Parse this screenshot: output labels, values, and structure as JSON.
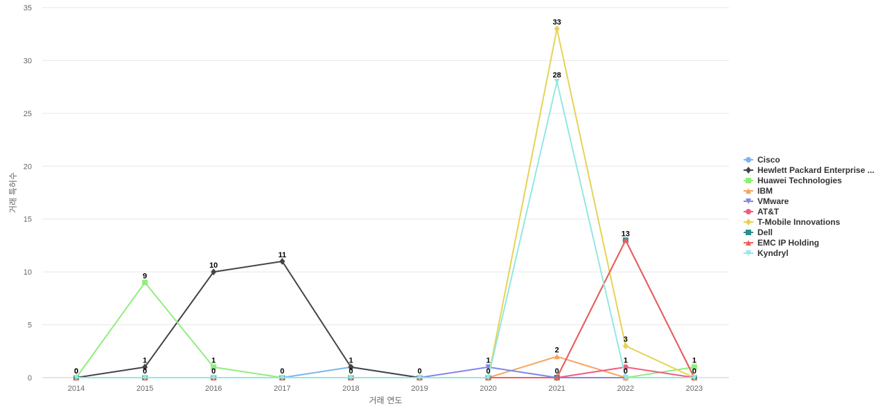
{
  "chart_data": {
    "type": "line",
    "title": "",
    "xlabel": "거래 연도",
    "ylabel": "거래 특허수",
    "ylim": [
      0,
      35
    ],
    "yticks": [
      0,
      5,
      10,
      15,
      20,
      25,
      30,
      35
    ],
    "grid": true,
    "legend_position": "right",
    "categories": [
      "2014",
      "2015",
      "2016",
      "2017",
      "2018",
      "2019",
      "2020",
      "2021",
      "2022",
      "2023"
    ],
    "series": [
      {
        "name": "Cisco",
        "color": "#7cb5ec",
        "marker": "circle",
        "values": [
          0,
          0,
          0,
          0,
          1,
          0,
          0,
          0,
          0,
          0
        ]
      },
      {
        "name": "Hewlett Packard Enterprise ...",
        "color": "#434348",
        "marker": "diamond",
        "values": [
          0,
          1,
          10,
          11,
          1,
          0,
          0,
          0,
          0,
          0
        ]
      },
      {
        "name": "Huawei Technologies",
        "color": "#90ed7d",
        "marker": "square",
        "values": [
          0,
          9,
          1,
          0,
          0,
          0,
          0,
          0,
          0,
          1
        ]
      },
      {
        "name": "IBM",
        "color": "#f7a35c",
        "marker": "triangle",
        "values": [
          0,
          0,
          0,
          0,
          0,
          0,
          0,
          2,
          0,
          0
        ]
      },
      {
        "name": "VMware",
        "color": "#8085e9",
        "marker": "triangle-down",
        "values": [
          0,
          0,
          0,
          0,
          0,
          0,
          1,
          0,
          0,
          0
        ]
      },
      {
        "name": "AT&T",
        "color": "#f15c80",
        "marker": "circle",
        "values": [
          0,
          0,
          0,
          0,
          0,
          0,
          0,
          0,
          1,
          0
        ]
      },
      {
        "name": "T-Mobile Innovations",
        "color": "#e4d354",
        "marker": "diamond",
        "values": [
          0,
          0,
          0,
          0,
          0,
          0,
          0,
          33,
          3,
          0
        ]
      },
      {
        "name": "Dell",
        "color": "#2b908f",
        "marker": "square",
        "values": [
          0,
          0,
          0,
          0,
          0,
          0,
          0,
          0,
          13,
          0
        ]
      },
      {
        "name": "EMC IP Holding",
        "color": "#f45b5b",
        "marker": "triangle",
        "values": [
          0,
          0,
          0,
          0,
          0,
          0,
          0,
          0,
          13,
          0
        ]
      },
      {
        "name": "Kyndryl",
        "color": "#91e8e1",
        "marker": "triangle-down",
        "values": [
          0,
          0,
          0,
          0,
          0,
          0,
          0,
          28,
          0,
          0
        ]
      }
    ],
    "data_labels": [
      {
        "x": "2014",
        "text": "0",
        "row": "top"
      },
      {
        "x": "2014",
        "text": "0",
        "row": "bottom",
        "value": 0
      },
      {
        "x": "2015",
        "text": "9",
        "value": 9
      },
      {
        "x": "2015",
        "text": "1",
        "value": 1
      },
      {
        "x": "2015",
        "text": "0",
        "value": 0
      },
      {
        "x": "2016",
        "text": "10",
        "value": 10
      },
      {
        "x": "2016",
        "text": "1",
        "value": 1
      },
      {
        "x": "2016",
        "text": "0",
        "value": 0
      },
      {
        "x": "2017",
        "text": "11",
        "value": 11
      },
      {
        "x": "2017",
        "text": "0",
        "value": 0
      },
      {
        "x": "2018",
        "text": "1",
        "value": 1
      },
      {
        "x": "2018",
        "text": "0",
        "value": 0
      },
      {
        "x": "2019",
        "text": "0",
        "value": 0
      },
      {
        "x": "2020",
        "text": "1",
        "value": 1
      },
      {
        "x": "2020",
        "text": "0",
        "value": 0
      },
      {
        "x": "2021",
        "text": "33",
        "value": 33
      },
      {
        "x": "2021",
        "text": "28",
        "value": 28
      },
      {
        "x": "2021",
        "text": "2",
        "value": 2
      },
      {
        "x": "2021",
        "text": "0",
        "value": 0
      },
      {
        "x": "2022",
        "text": "13",
        "value": 13
      },
      {
        "x": "2022",
        "text": "3",
        "value": 3
      },
      {
        "x": "2022",
        "text": "1",
        "value": 1
      },
      {
        "x": "2022",
        "text": "0",
        "value": 0
      },
      {
        "x": "2023",
        "text": "1",
        "value": 1
      },
      {
        "x": "2023",
        "text": "0",
        "value": 0
      }
    ]
  }
}
